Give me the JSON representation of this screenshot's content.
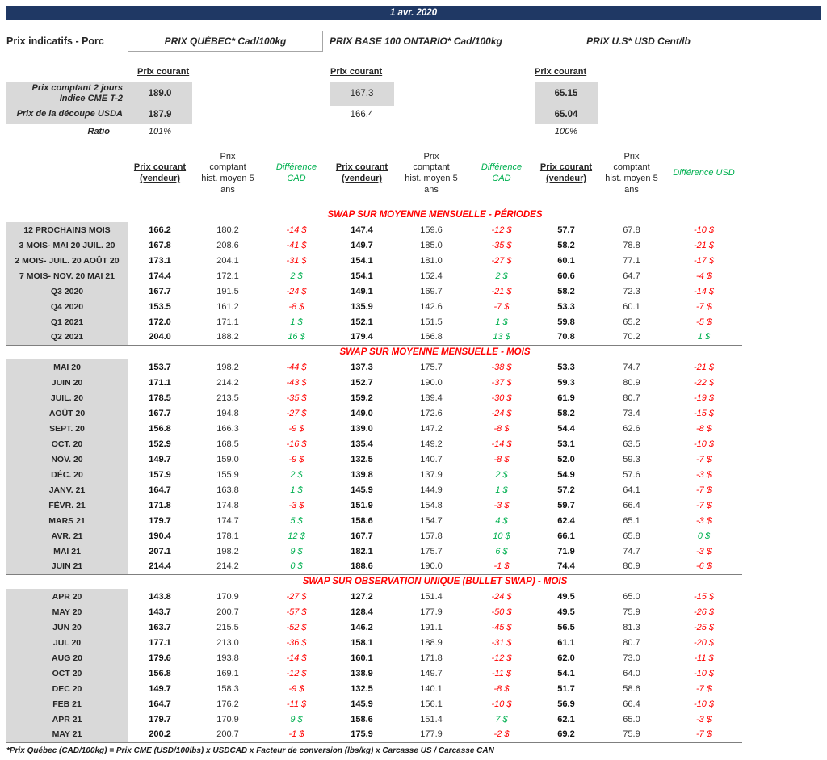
{
  "header": {
    "date": "1 avr. 2020",
    "title": "Prix indicatifs - Porc",
    "prix_courant": "Prix courant",
    "groups": [
      {
        "title": "PRIX QUÉBEC* Cad/100kg"
      },
      {
        "title": "PRIX BASE 100 ONTARIO* Cad/100kg"
      },
      {
        "title": "PRIX U.S* USD Cent/lb"
      }
    ]
  },
  "colors": {
    "navy": "#1F3864",
    "negative_red": "#FF0000",
    "positive_green": "#00B050",
    "label_gray": "#D9D9D9"
  },
  "spot": {
    "rows": [
      {
        "label_line1": "Prix comptant 2 jours",
        "label_line2": "Indice CME T-2",
        "quebec": "189.0",
        "ontario": "167.3",
        "us": "65.15"
      },
      {
        "label": "Prix de la découpe USDA",
        "quebec": "187.9",
        "ontario": "166.4",
        "us": "65.04"
      }
    ],
    "ratio": {
      "label": "Ratio",
      "quebec": "101%",
      "us": "100%"
    }
  },
  "columns": {
    "vendeur": "Prix courant (vendeur)",
    "hist": "Prix comptant hist. moyen 5 ans",
    "diff_cad": "Différence CAD",
    "diff_usd": "Différence USD"
  },
  "sections": [
    {
      "title": "SWAP SUR MOYENNE MENSUELLE - PÉRIODES",
      "rows": [
        {
          "label": "12 PROCHAINS MOIS",
          "qc": [
            "166.2",
            "180.2",
            "-14 $"
          ],
          "on": [
            "147.4",
            "159.6",
            "-12 $"
          ],
          "us": [
            "57.7",
            "67.8",
            "-10 $"
          ]
        },
        {
          "label": "3 MOIS- MAI 20 JUIL. 20",
          "qc": [
            "167.8",
            "208.6",
            "-41 $"
          ],
          "on": [
            "149.7",
            "185.0",
            "-35 $"
          ],
          "us": [
            "58.2",
            "78.8",
            "-21 $"
          ]
        },
        {
          "label": "2 MOIS- JUIL. 20 AOÛT 20",
          "qc": [
            "173.1",
            "204.1",
            "-31 $"
          ],
          "on": [
            "154.1",
            "181.0",
            "-27 $"
          ],
          "us": [
            "60.1",
            "77.1",
            "-17 $"
          ]
        },
        {
          "label": "7 MOIS- NOV. 20 MAI 21",
          "qc": [
            "174.4",
            "172.1",
            "2 $"
          ],
          "on": [
            "154.1",
            "152.4",
            "2 $"
          ],
          "us": [
            "60.6",
            "64.7",
            "-4 $"
          ]
        },
        {
          "label": "Q3 2020",
          "qc": [
            "167.7",
            "191.5",
            "-24 $"
          ],
          "on": [
            "149.1",
            "169.7",
            "-21 $"
          ],
          "us": [
            "58.2",
            "72.3",
            "-14 $"
          ]
        },
        {
          "label": "Q4 2020",
          "qc": [
            "153.5",
            "161.2",
            "-8 $"
          ],
          "on": [
            "135.9",
            "142.6",
            "-7 $"
          ],
          "us": [
            "53.3",
            "60.1",
            "-7 $"
          ]
        },
        {
          "label": "Q1 2021",
          "qc": [
            "172.0",
            "171.1",
            "1 $"
          ],
          "on": [
            "152.1",
            "151.5",
            "1 $"
          ],
          "us": [
            "59.8",
            "65.2",
            "-5 $"
          ]
        },
        {
          "label": "Q2 2021",
          "qc": [
            "204.0",
            "188.2",
            "16 $"
          ],
          "on": [
            "179.4",
            "166.8",
            "13 $"
          ],
          "us": [
            "70.8",
            "70.2",
            "1 $"
          ]
        }
      ]
    },
    {
      "title": "SWAP SUR MOYENNE MENSUELLE - MOIS",
      "rows": [
        {
          "label": "MAI 20",
          "qc": [
            "153.7",
            "198.2",
            "-44 $"
          ],
          "on": [
            "137.3",
            "175.7",
            "-38 $"
          ],
          "us": [
            "53.3",
            "74.7",
            "-21 $"
          ]
        },
        {
          "label": "JUIN 20",
          "qc": [
            "171.1",
            "214.2",
            "-43 $"
          ],
          "on": [
            "152.7",
            "190.0",
            "-37 $"
          ],
          "us": [
            "59.3",
            "80.9",
            "-22 $"
          ]
        },
        {
          "label": "JUIL. 20",
          "qc": [
            "178.5",
            "213.5",
            "-35 $"
          ],
          "on": [
            "159.2",
            "189.4",
            "-30 $"
          ],
          "us": [
            "61.9",
            "80.7",
            "-19 $"
          ]
        },
        {
          "label": "AOÛT 20",
          "qc": [
            "167.7",
            "194.8",
            "-27 $"
          ],
          "on": [
            "149.0",
            "172.6",
            "-24 $"
          ],
          "us": [
            "58.2",
            "73.4",
            "-15 $"
          ]
        },
        {
          "label": "SEPT. 20",
          "qc": [
            "156.8",
            "166.3",
            "-9 $"
          ],
          "on": [
            "139.0",
            "147.2",
            "-8 $"
          ],
          "us": [
            "54.4",
            "62.6",
            "-8 $"
          ]
        },
        {
          "label": "OCT. 20",
          "qc": [
            "152.9",
            "168.5",
            "-16 $"
          ],
          "on": [
            "135.4",
            "149.2",
            "-14 $"
          ],
          "us": [
            "53.1",
            "63.5",
            "-10 $"
          ]
        },
        {
          "label": "NOV. 20",
          "qc": [
            "149.7",
            "159.0",
            "-9 $"
          ],
          "on": [
            "132.5",
            "140.7",
            "-8 $"
          ],
          "us": [
            "52.0",
            "59.3",
            "-7 $"
          ]
        },
        {
          "label": "DÉC. 20",
          "qc": [
            "157.9",
            "155.9",
            "2 $"
          ],
          "on": [
            "139.8",
            "137.9",
            "2 $"
          ],
          "us": [
            "54.9",
            "57.6",
            "-3 $"
          ]
        },
        {
          "label": "JANV. 21",
          "qc": [
            "164.7",
            "163.8",
            "1 $"
          ],
          "on": [
            "145.9",
            "144.9",
            "1 $"
          ],
          "us": [
            "57.2",
            "64.1",
            "-7 $"
          ]
        },
        {
          "label": "FÉVR. 21",
          "qc": [
            "171.8",
            "174.8",
            "-3 $"
          ],
          "on": [
            "151.9",
            "154.8",
            "-3 $"
          ],
          "us": [
            "59.7",
            "66.4",
            "-7 $"
          ]
        },
        {
          "label": "MARS 21",
          "qc": [
            "179.7",
            "174.7",
            "5 $"
          ],
          "on": [
            "158.6",
            "154.7",
            "4 $"
          ],
          "us": [
            "62.4",
            "65.1",
            "-3 $"
          ]
        },
        {
          "label": "AVR. 21",
          "qc": [
            "190.4",
            "178.1",
            "12 $"
          ],
          "on": [
            "167.7",
            "157.8",
            "10 $"
          ],
          "us": [
            "66.1",
            "65.8",
            "0 $"
          ]
        },
        {
          "label": "MAI 21",
          "qc": [
            "207.1",
            "198.2",
            "9 $"
          ],
          "on": [
            "182.1",
            "175.7",
            "6 $"
          ],
          "us": [
            "71.9",
            "74.7",
            "-3 $"
          ]
        },
        {
          "label": "JUIN 21",
          "qc": [
            "214.4",
            "214.2",
            "0 $"
          ],
          "on": [
            "188.6",
            "190.0",
            "-1 $"
          ],
          "us": [
            "74.4",
            "80.9",
            "-6 $"
          ]
        }
      ]
    },
    {
      "title": "SWAP SUR OBSERVATION UNIQUE (BULLET SWAP) - MOIS",
      "rows": [
        {
          "label": "APR 20",
          "qc": [
            "143.8",
            "170.9",
            "-27 $"
          ],
          "on": [
            "127.2",
            "151.4",
            "-24 $"
          ],
          "us": [
            "49.5",
            "65.0",
            "-15 $"
          ]
        },
        {
          "label": "MAY 20",
          "qc": [
            "143.7",
            "200.7",
            "-57 $"
          ],
          "on": [
            "128.4",
            "177.9",
            "-50 $"
          ],
          "us": [
            "49.5",
            "75.9",
            "-26 $"
          ]
        },
        {
          "label": "JUN 20",
          "qc": [
            "163.7",
            "215.5",
            "-52 $"
          ],
          "on": [
            "146.2",
            "191.1",
            "-45 $"
          ],
          "us": [
            "56.5",
            "81.3",
            "-25 $"
          ]
        },
        {
          "label": "JUL 20",
          "qc": [
            "177.1",
            "213.0",
            "-36 $"
          ],
          "on": [
            "158.1",
            "188.9",
            "-31 $"
          ],
          "us": [
            "61.1",
            "80.7",
            "-20 $"
          ]
        },
        {
          "label": "AUG 20",
          "qc": [
            "179.6",
            "193.8",
            "-14 $"
          ],
          "on": [
            "160.1",
            "171.8",
            "-12 $"
          ],
          "us": [
            "62.0",
            "73.0",
            "-11 $"
          ]
        },
        {
          "label": "OCT 20",
          "qc": [
            "156.8",
            "169.1",
            "-12 $"
          ],
          "on": [
            "138.9",
            "149.7",
            "-11 $"
          ],
          "us": [
            "54.1",
            "64.0",
            "-10 $"
          ]
        },
        {
          "label": "DEC 20",
          "qc": [
            "149.7",
            "158.3",
            "-9 $"
          ],
          "on": [
            "132.5",
            "140.1",
            "-8 $"
          ],
          "us": [
            "51.7",
            "58.6",
            "-7 $"
          ]
        },
        {
          "label": "FEB 21",
          "qc": [
            "164.7",
            "176.2",
            "-11 $"
          ],
          "on": [
            "145.9",
            "156.1",
            "-10 $"
          ],
          "us": [
            "56.9",
            "66.4",
            "-10 $"
          ]
        },
        {
          "label": "APR 21",
          "qc": [
            "179.7",
            "170.9",
            "9 $"
          ],
          "on": [
            "158.6",
            "151.4",
            "7 $"
          ],
          "us": [
            "62.1",
            "65.0",
            "-3 $"
          ]
        },
        {
          "label": "MAY 21",
          "qc": [
            "200.2",
            "200.7",
            "-1 $"
          ],
          "on": [
            "175.9",
            "177.9",
            "-2 $"
          ],
          "us": [
            "69.2",
            "75.9",
            "-7 $"
          ]
        }
      ]
    }
  ],
  "footnote": "*Prix Québec (CAD/100kg) = Prix CME (USD/100lbs) x USDCAD x Facteur de conversion (lbs/kg) x Carcasse US / Carcasse CAN"
}
